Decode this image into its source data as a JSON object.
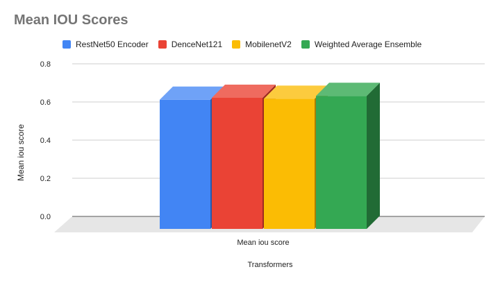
{
  "chart_data": {
    "type": "bar",
    "style": "3d",
    "title": "Mean IOU Scores",
    "categories": [
      "Mean iou score"
    ],
    "series": [
      {
        "name": "RestNet50 Encoder",
        "color": "#4285F4",
        "side_color": "#2A57A8",
        "top_color": "#6FA2F7",
        "values": [
          0.67
        ]
      },
      {
        "name": "DenceNet121",
        "color": "#EA4335",
        "side_color": "#9E2A20",
        "top_color": "#EF6B5F",
        "values": [
          0.68
        ]
      },
      {
        "name": "MobilenetV2",
        "color": "#FBBC04",
        "side_color": "#A87E03",
        "top_color": "#FCCB3E",
        "values": [
          0.675
        ]
      },
      {
        "name": "Weighted Average Ensemble",
        "color": "#34A853",
        "side_color": "#216B35",
        "top_color": "#5DBA75",
        "values": [
          0.69
        ]
      }
    ],
    "xlabel": "Transformers",
    "ylabel": "Mean iou score",
    "ylim": [
      0,
      0.8
    ],
    "yticks": [
      "0.0",
      "0.2",
      "0.4",
      "0.6",
      "0.8"
    ],
    "grid": true,
    "legend_position": "top"
  }
}
